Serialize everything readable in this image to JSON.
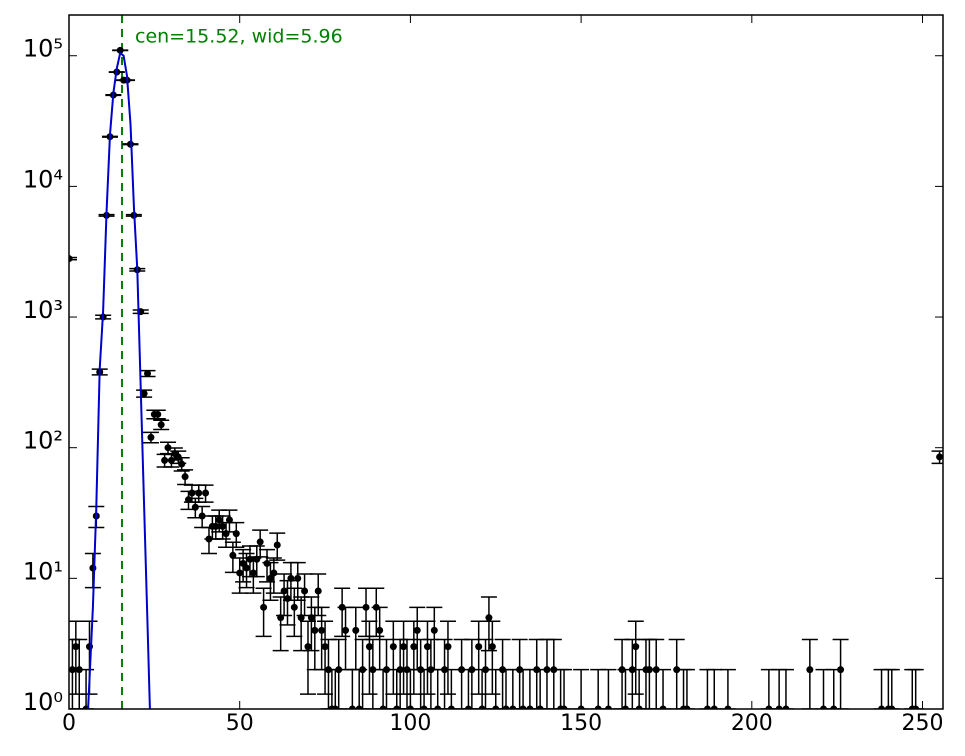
{
  "chart_data": {
    "type": "scatter",
    "annotation": "cen=15.52, wid=5.96",
    "vline": {
      "x": 15.52,
      "color": "#008000"
    },
    "xlim": [
      0,
      256
    ],
    "xticks": [
      0,
      50,
      100,
      150,
      200,
      250
    ],
    "ylim": [
      1,
      205000
    ],
    "log_y": true,
    "yticks": [
      {
        "value": 1,
        "label": "10⁰"
      },
      {
        "value": 10,
        "label": "10¹"
      },
      {
        "value": 100,
        "label": "10²"
      },
      {
        "value": 1000,
        "label": "10³"
      },
      {
        "value": 10000,
        "label": "10⁴"
      },
      {
        "value": 100000,
        "label": "10⁵"
      }
    ],
    "grid": false,
    "series": [
      {
        "color": "#000000",
        "style": "errorbar",
        "x": [
          0,
          1,
          2,
          3,
          5,
          6,
          7,
          8,
          9,
          10,
          11,
          12,
          13,
          14,
          15,
          16,
          17,
          18,
          19,
          20,
          21,
          22,
          23,
          24,
          25,
          26,
          27,
          28,
          29,
          30,
          31,
          32,
          33,
          34,
          35,
          36,
          37,
          38,
          39,
          40,
          41,
          42,
          43,
          44,
          45,
          46,
          47,
          48,
          49,
          50,
          51,
          52,
          53,
          54,
          55,
          56,
          57,
          58,
          59,
          60,
          61,
          62,
          63,
          64,
          65,
          66,
          67,
          68,
          69,
          70,
          71,
          72,
          73,
          74,
          75,
          76,
          77,
          78,
          79,
          80,
          81,
          83,
          84,
          85,
          86,
          87,
          88,
          89,
          90,
          91,
          92,
          93,
          95,
          96,
          97,
          98,
          99,
          100,
          101,
          102,
          103,
          104,
          105,
          106,
          107,
          108,
          110,
          111,
          112,
          115,
          117,
          118,
          120,
          121,
          122,
          123,
          124,
          125,
          127,
          128,
          130,
          132,
          133,
          135,
          137,
          138,
          140,
          142,
          144,
          145,
          150,
          155,
          158,
          162,
          163,
          165,
          166,
          167,
          169,
          170,
          172,
          174,
          178,
          180,
          181,
          187,
          189,
          193,
          205,
          208,
          210,
          217,
          221,
          224,
          226,
          238,
          240,
          241,
          247,
          248,
          255
        ],
        "values": [
          2800,
          2,
          3,
          2,
          1,
          3,
          12,
          30,
          380,
          1000,
          6000,
          24000,
          50000,
          75000,
          110000,
          65000,
          65000,
          21000,
          6000,
          2300,
          1100,
          260,
          370,
          120,
          180,
          180,
          150,
          80,
          100,
          80,
          90,
          85,
          75,
          60,
          40,
          45,
          35,
          45,
          30,
          45,
          20,
          25,
          25,
          28,
          25,
          22,
          28,
          15,
          22,
          11,
          13,
          12,
          14,
          11,
          14,
          19,
          6,
          13,
          10,
          11,
          18,
          5,
          8,
          7,
          10,
          6,
          10,
          5,
          8,
          3,
          5,
          4,
          8,
          4,
          3,
          2,
          1,
          1,
          2,
          6,
          4,
          1,
          4,
          1,
          2,
          6,
          3,
          2,
          6,
          4,
          1,
          2,
          3,
          1,
          2,
          3,
          2,
          1,
          3,
          4,
          2,
          1,
          3,
          2,
          4,
          1,
          2,
          3,
          1,
          2,
          1,
          2,
          3,
          1,
          2,
          5,
          3,
          1,
          2,
          1,
          1,
          2,
          1,
          1,
          2,
          1,
          2,
          2,
          1,
          1,
          1,
          1,
          1,
          2,
          1,
          2,
          3,
          1,
          2,
          2,
          2,
          1,
          2,
          1,
          1,
          1,
          1,
          1,
          1,
          1,
          1,
          2,
          1,
          1,
          2,
          1,
          1,
          1,
          1,
          1,
          85
        ],
        "errors": [
          53,
          1.4,
          1.7,
          1.4,
          1,
          1.7,
          3.5,
          5.5,
          19.5,
          31.6,
          77,
          155,
          224,
          274,
          332,
          255,
          255,
          145,
          77,
          48,
          33,
          16,
          19,
          11,
          13.4,
          13.4,
          12.2,
          8.9,
          10,
          8.9,
          9.5,
          9.2,
          8.7,
          7.7,
          6.3,
          6.7,
          5.9,
          6.7,
          5.5,
          6.7,
          4.5,
          5,
          5,
          5.3,
          5,
          4.7,
          5.3,
          3.9,
          4.7,
          3.3,
          3.6,
          3.5,
          3.7,
          3.3,
          3.7,
          4.4,
          2.4,
          3.6,
          3.2,
          3.3,
          4.2,
          2.2,
          2.8,
          2.6,
          3.2,
          2.4,
          3.2,
          2.2,
          2.8,
          1.7,
          2.2,
          2,
          2.8,
          2,
          1.7,
          1.4,
          1,
          1,
          1.4,
          2.4,
          2,
          1,
          2,
          1,
          1.4,
          2.4,
          1.7,
          1.4,
          2.4,
          2,
          1,
          1.4,
          1.7,
          1,
          1.4,
          1.7,
          1.4,
          1,
          1.7,
          2,
          1.4,
          1,
          1.7,
          1.4,
          2,
          1,
          1.4,
          1.7,
          1,
          1.4,
          1,
          1.4,
          1.7,
          1,
          1.4,
          2.2,
          1.7,
          1,
          1.4,
          1,
          1,
          1.4,
          1,
          1,
          1.4,
          1,
          1.4,
          1.4,
          1,
          1,
          1,
          1,
          1,
          1.4,
          1,
          1.4,
          1.7,
          1,
          1.4,
          1.4,
          1.4,
          1,
          1.4,
          1,
          1,
          1,
          1,
          1,
          1,
          1,
          1,
          1.4,
          1,
          1,
          1.4,
          1,
          1,
          1,
          1,
          1,
          9.2
        ]
      },
      {
        "color": "#0000cc",
        "style": "line",
        "x": [
          5.6,
          7,
          8,
          9,
          10,
          11,
          12,
          13,
          14,
          15,
          16,
          17,
          18,
          19,
          20,
          21,
          22,
          23,
          23.7
        ],
        "values": [
          1,
          6,
          35,
          400,
          1100,
          6500,
          25000,
          52000,
          80000,
          105000,
          100000,
          70000,
          30000,
          7000,
          2300,
          290,
          36,
          4.5,
          1
        ]
      }
    ]
  }
}
